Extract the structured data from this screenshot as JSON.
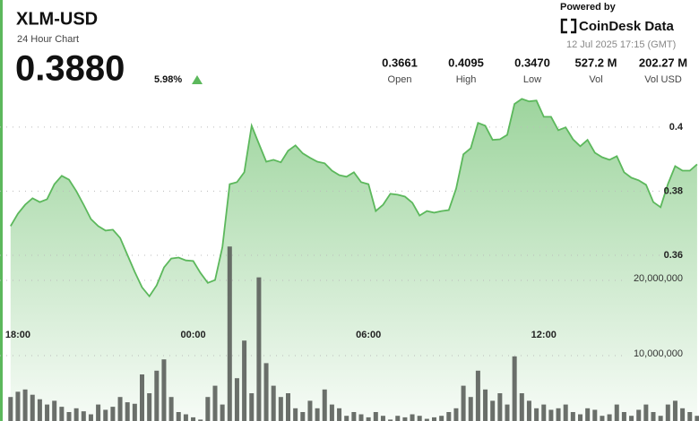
{
  "header": {
    "title": "XLM-USD",
    "subtitle": "24 Hour Chart",
    "price": "0.3880",
    "change": "5.98%",
    "powered_by": "Powered by",
    "brand": "CoinDesk Data",
    "timestamp": "12 Jul 2025 17:15 (GMT)",
    "stats": [
      {
        "value": "0.3661",
        "label": "Open"
      },
      {
        "value": "0.4095",
        "label": "High"
      },
      {
        "value": "0.3470",
        "label": "Low"
      },
      {
        "value": "527.2 M",
        "label": "Vol"
      },
      {
        "value": "202.27 M",
        "label": "Vol USD"
      }
    ]
  },
  "chart_data": {
    "type": "line",
    "color": "#5cb85c",
    "categories": [
      null,
      "18:00",
      null,
      null,
      null,
      null,
      null,
      null,
      null,
      null,
      null,
      null,
      null,
      null,
      null,
      null,
      null,
      null,
      null,
      null,
      null,
      null,
      null,
      null,
      null,
      "00:00",
      null,
      null,
      null,
      null,
      null,
      null,
      null,
      null,
      null,
      null,
      null,
      null,
      null,
      null,
      null,
      null,
      null,
      null,
      null,
      null,
      null,
      null,
      null,
      "06:00",
      null,
      null,
      null,
      null,
      null,
      null,
      null,
      null,
      null,
      null,
      null,
      null,
      null,
      null,
      null,
      null,
      null,
      null,
      null,
      null,
      null,
      null,
      null,
      "12:00",
      null,
      null,
      null,
      null,
      null,
      null,
      null,
      null,
      null,
      null,
      null,
      null,
      null,
      null,
      null,
      null,
      null,
      null,
      null,
      null,
      null
    ],
    "values": [
      0.3691,
      0.373,
      0.3758,
      0.3778,
      0.3766,
      0.3775,
      0.3822,
      0.3848,
      0.3836,
      0.38,
      0.3758,
      0.3713,
      0.3691,
      0.3677,
      0.368,
      0.3654,
      0.3601,
      0.3548,
      0.35,
      0.3472,
      0.3506,
      0.3562,
      0.359,
      0.3593,
      0.3584,
      0.3582,
      0.3545,
      0.3514,
      0.3523,
      0.3626,
      0.3822,
      0.3828,
      0.3859,
      0.4004,
      0.3948,
      0.3892,
      0.3898,
      0.389,
      0.3926,
      0.3943,
      0.3918,
      0.3904,
      0.3892,
      0.3887,
      0.3864,
      0.385,
      0.3845,
      0.3859,
      0.3828,
      0.3822,
      0.3738,
      0.3758,
      0.3792,
      0.3789,
      0.3783,
      0.3764,
      0.3724,
      0.3738,
      0.3733,
      0.3738,
      0.3741,
      0.3808,
      0.3915,
      0.3934,
      0.4013,
      0.4004,
      0.396,
      0.3962,
      0.3976,
      0.4072,
      0.4088,
      0.408,
      0.4083,
      0.4032,
      0.4032,
      0.399,
      0.3999,
      0.3962,
      0.394,
      0.396,
      0.392,
      0.3906,
      0.3898,
      0.3909,
      0.3859,
      0.3842,
      0.3834,
      0.382,
      0.3766,
      0.375,
      0.3822,
      0.3878,
      0.3864,
      0.3864,
      0.3884
    ],
    "ylim": [
      0.3083,
      0.4117
    ],
    "yticks": [
      0.36,
      0.38,
      0.4
    ],
    "volume": {
      "axis": "y2",
      "color": "#5b5f5b",
      "values": [
        4500000,
        5200000,
        5500000,
        4800000,
        4200000,
        3500000,
        4000000,
        3200000,
        2500000,
        3000000,
        2600000,
        2200000,
        3500000,
        2800000,
        3200000,
        4500000,
        3800000,
        3600000,
        7500000,
        5000000,
        8000000,
        9500000,
        4500000,
        2500000,
        2200000,
        1800000,
        1500000,
        4500000,
        6000000,
        3500000,
        24500000,
        7000000,
        12000000,
        5000000,
        20400000,
        9000000,
        6000000,
        4500000,
        5000000,
        3000000,
        2500000,
        4000000,
        3000000,
        5500000,
        3500000,
        3000000,
        2000000,
        2500000,
        2200000,
        1800000,
        2500000,
        2000000,
        1500000,
        2000000,
        1800000,
        2200000,
        2000000,
        1600000,
        1800000,
        2000000,
        2500000,
        3000000,
        6000000,
        4500000,
        8000000,
        5500000,
        4000000,
        5000000,
        3500000,
        9900000,
        5000000,
        4000000,
        3000000,
        3500000,
        2800000,
        3000000,
        3500000,
        2500000,
        2200000,
        3000000,
        2800000,
        2000000,
        2200000,
        3500000,
        2500000,
        2000000,
        2800000,
        3500000,
        2500000,
        2000000,
        3500000,
        4000000,
        3000000,
        2500000,
        2000000
      ]
    },
    "y2lim": [
      1310000,
      45360000
    ],
    "y2ticks": [
      {
        "value": 10000000,
        "label": "10,000,000"
      },
      {
        "value": 20000000,
        "label": "20,000,000"
      }
    ],
    "grid": true
  }
}
